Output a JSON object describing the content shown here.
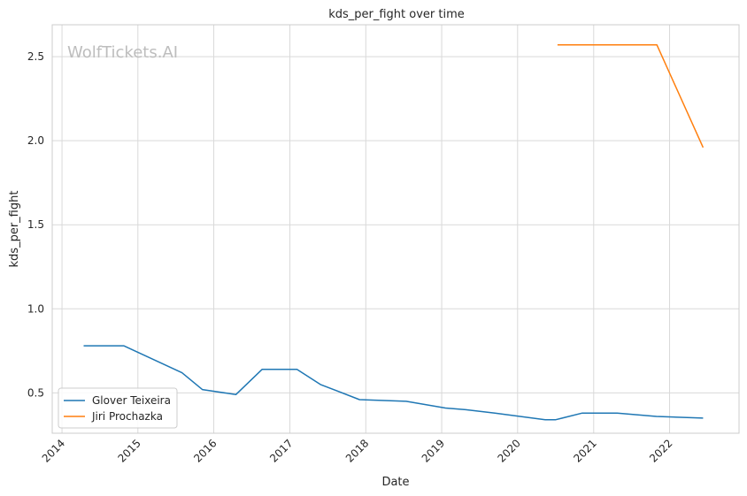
{
  "chart_data": {
    "type": "line",
    "title": "kds_per_fight over time",
    "xlabel": "Date",
    "ylabel": "kds_per_fight",
    "watermark": "WolfTickets.AI",
    "xlim": [
      "2013-11-15",
      "2022-12-01"
    ],
    "ylim": [
      0.26,
      2.69
    ],
    "x_ticks": [
      "2014",
      "2015",
      "2016",
      "2017",
      "2018",
      "2019",
      "2020",
      "2021",
      "2022"
    ],
    "y_ticks": [
      "0.5",
      "1.0",
      "1.5",
      "2.0",
      "2.5"
    ],
    "grid": true,
    "legend_position": "lower-left",
    "series": [
      {
        "name": "Glover Teixeira",
        "color": "#1f77b4",
        "x": [
          "2014-04-15",
          "2014-10-25",
          "2015-08-01",
          "2015-11-07",
          "2016-04-16",
          "2016-08-20",
          "2017-02-04",
          "2017-05-28",
          "2017-12-02",
          "2018-07-14",
          "2019-01-19",
          "2019-04-27",
          "2019-09-14",
          "2020-05-13",
          "2020-07-01",
          "2020-11-07",
          "2021-04-24",
          "2021-10-30",
          "2022-06-11"
        ],
        "values": [
          0.78,
          0.78,
          0.62,
          0.52,
          0.49,
          0.64,
          0.64,
          0.55,
          0.46,
          0.45,
          0.41,
          0.4,
          0.38,
          0.34,
          0.34,
          0.38,
          0.38,
          0.36,
          0.35
        ]
      },
      {
        "name": "Jiri Prochazka",
        "color": "#ff7f0e",
        "x": [
          "2020-07-11",
          "2021-05-01",
          "2021-11-01",
          "2022-06-11"
        ],
        "values": [
          2.57,
          2.57,
          2.57,
          1.96
        ]
      }
    ]
  }
}
